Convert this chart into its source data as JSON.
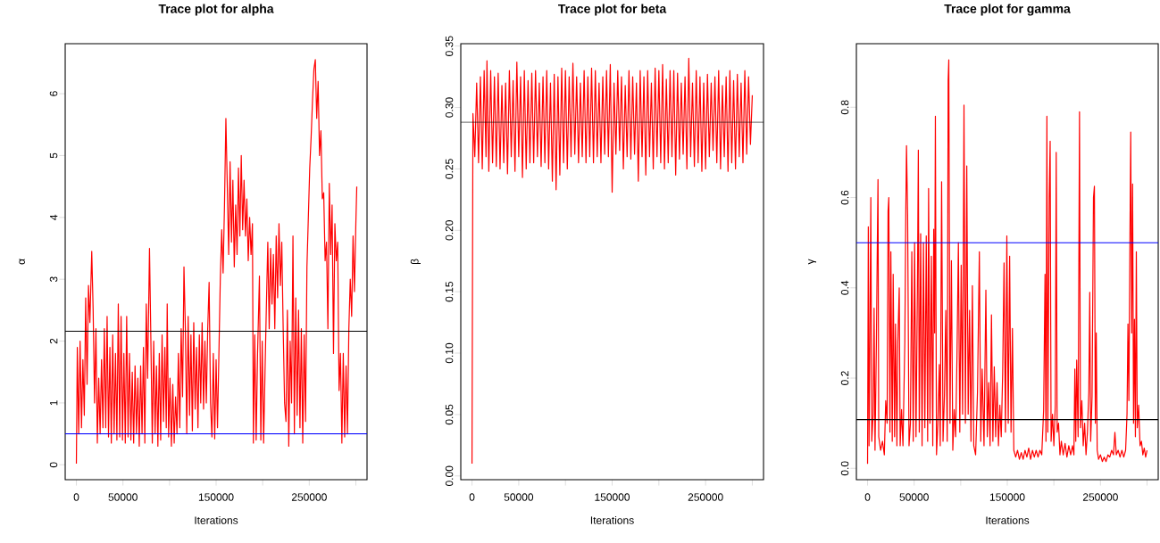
{
  "chart_data": [
    {
      "type": "line",
      "title": "Trace plot for alpha",
      "xlabel": "Iterations",
      "ylabel": "α",
      "xlim": [
        -12000,
        312000
      ],
      "ylim": [
        -0.24,
        6.81
      ],
      "xticks": [
        0,
        50000,
        {
          "value": 100000,
          "label": null
        },
        150000,
        {
          "value": 200000,
          "label": null
        },
        250000,
        {
          "value": 300000,
          "label": null
        }
      ],
      "yticks": [
        0,
        1,
        2,
        3,
        4,
        5,
        6
      ],
      "ref_lines": [
        {
          "axis": "y",
          "value": 2.16,
          "color": "#000000"
        },
        {
          "axis": "y",
          "value": 0.5,
          "color": "#0000ff"
        }
      ],
      "series": [
        {
          "color": "#ff0000",
          "x": [
            0,
            1000,
            2500,
            4000,
            5500,
            7000,
            8500,
            10000,
            11500,
            13000,
            14500,
            16500,
            18000,
            19500,
            21000,
            22500,
            24000,
            25500,
            27000,
            28500,
            30000,
            31500,
            33000,
            34500,
            36000,
            37500,
            39000,
            40500,
            42000,
            43500,
            45000,
            46500,
            48000,
            49500,
            51000,
            52500,
            54000,
            55500,
            57000,
            58500,
            60000,
            61500,
            63000,
            64500,
            66000,
            67500,
            69000,
            70500,
            72000,
            73500,
            75000,
            76500,
            78500,
            80000,
            81500,
            83000,
            84500,
            86000,
            87500,
            89000,
            90500,
            92000,
            93500,
            95000,
            96500,
            97500,
            99000,
            100500,
            102000,
            103500,
            105000,
            106500,
            108000,
            109500,
            111000,
            112500,
            114000,
            115500,
            117000,
            118500,
            120000,
            121500,
            123000,
            124500,
            126000,
            127500,
            129000,
            130500,
            132000,
            133500,
            135000,
            136500,
            138000,
            139500,
            141000,
            142500,
            144000,
            145500,
            147000,
            148500,
            150000,
            151500,
            153000,
            154500,
            156000,
            157500,
            159000,
            160500,
            162000,
            163500,
            165000,
            166500,
            168000,
            169500,
            171000,
            172500,
            174000,
            175500,
            177000,
            178500,
            180000,
            181500,
            183000,
            184500,
            186000,
            187500,
            189000,
            190000,
            191500,
            193000,
            194500,
            196500,
            198000,
            199500,
            201000,
            202500,
            204000,
            205500,
            207000,
            208500,
            210000,
            211500,
            213000,
            214500,
            216000,
            217500,
            219000,
            220500,
            222000,
            223500,
            225000,
            226500,
            228000,
            229500,
            231000,
            232500,
            234000,
            235500,
            237000,
            238500,
            240000,
            241500,
            243000,
            244500,
            246000,
            247500,
            249000,
            250500,
            252000,
            253500,
            255000,
            256500,
            258000,
            259500,
            261000,
            262500,
            264000,
            265500,
            267000,
            268500,
            270000,
            271500,
            273000,
            274500,
            276000,
            277500,
            279000,
            280500,
            282000,
            283500,
            285000,
            286500,
            288000,
            289500,
            291000,
            292500,
            294000,
            295500,
            297000,
            298500,
            300000,
            301000
          ],
          "values": [
            0.02,
            1.9,
            0.5,
            2.0,
            0.6,
            1.7,
            0.8,
            2.7,
            1.3,
            2.9,
            2.3,
            3.45,
            2.5,
            1.0,
            2.2,
            0.35,
            1.4,
            0.5,
            1.7,
            0.6,
            2.2,
            0.6,
            2.4,
            0.45,
            1.9,
            0.35,
            2.1,
            0.5,
            1.8,
            0.4,
            2.6,
            0.45,
            2.4,
            0.4,
            1.8,
            0.35,
            2.4,
            0.45,
            1.8,
            0.4,
            1.5,
            0.35,
            1.6,
            0.5,
            1.4,
            0.3,
            1.6,
            0.5,
            1.9,
            0.35,
            2.6,
            1.4,
            3.5,
            2.0,
            0.35,
            2.0,
            0.5,
            1.6,
            0.3,
            1.8,
            0.4,
            2.1,
            0.7,
            1.9,
            0.6,
            2.6,
            0.45,
            1.4,
            0.3,
            1.3,
            0.35,
            1.1,
            0.5,
            1.8,
            0.6,
            2.2,
            1.1,
            3.2,
            2.2,
            0.5,
            2.4,
            0.8,
            2.1,
            0.55,
            2.3,
            0.9,
            1.9,
            0.6,
            2.1,
            1.0,
            2.3,
            0.9,
            2.0,
            1.0,
            2.2,
            2.95,
            1.0,
            0.45,
            1.8,
            0.42,
            1.7,
            0.6,
            1.8,
            3.0,
            3.8,
            3.1,
            4.2,
            5.6,
            4.5,
            3.4,
            4.9,
            3.6,
            4.6,
            3.2,
            4.2,
            3.4,
            4.8,
            3.7,
            5.0,
            3.8,
            4.6,
            3.7,
            4.3,
            3.3,
            4.0,
            3.4,
            3.9,
            0.35,
            2.1,
            0.4,
            1.8,
            3.05,
            0.4,
            2.0,
            0.35,
            1.5,
            2.6,
            3.6,
            2.2,
            3.5,
            2.6,
            3.4,
            2.2,
            3.7,
            2.7,
            3.9,
            2.9,
            3.6,
            2.2,
            1.0,
            0.7,
            2.5,
            0.3,
            2.0,
            1.0,
            3.7,
            0.5,
            2.7,
            0.8,
            2.5,
            0.6,
            2.2,
            0.35,
            2.1,
            0.7,
            3.2,
            4.0,
            4.8,
            5.3,
            5.9,
            6.4,
            6.55,
            5.6,
            6.2,
            5.0,
            5.4,
            4.3,
            4.4,
            3.3,
            3.6,
            2.2,
            4.55,
            3.4,
            4.2,
            1.8,
            3.9,
            3.3,
            3.6,
            1.2,
            1.8,
            0.35,
            1.8,
            0.45,
            1.6,
            0.5,
            2.2,
            3.0,
            2.4,
            3.7,
            2.8,
            3.9,
            4.5
          ]
        }
      ]
    },
    {
      "type": "line",
      "title": "Trace plot for beta",
      "xlabel": "Iterations",
      "ylabel": "β",
      "xlim": [
        -12000,
        312000
      ],
      "ylim": [
        -0.003,
        0.352
      ],
      "xticks": [
        0,
        50000,
        {
          "value": 100000,
          "label": null
        },
        150000,
        {
          "value": 200000,
          "label": null
        },
        250000,
        {
          "value": 300000,
          "label": null
        }
      ],
      "yticks": [
        {
          "value": 0,
          "label": "0.00"
        },
        0.05,
        {
          "value": 0.1,
          "label": "0.10"
        },
        0.15,
        {
          "value": 0.2,
          "label": "0.20"
        },
        0.25,
        {
          "value": 0.3,
          "label": "0.30"
        },
        0.35
      ],
      "ref_lines": [
        {
          "axis": "y",
          "value": 0.288,
          "color": "#000000"
        }
      ],
      "series": [
        {
          "color": "#ff0000",
          "x": [
            0,
            1000,
            3000,
            5000,
            7000,
            9000,
            11000,
            13000,
            15000,
            16000,
            18000,
            20000,
            22000,
            24000,
            26000,
            28000,
            30000,
            32000,
            34000,
            36000,
            38000,
            40000,
            42000,
            44000,
            46000,
            48000,
            50000,
            52000,
            54000,
            56000,
            58000,
            60000,
            62000,
            64000,
            66000,
            68000,
            70000,
            72000,
            74000,
            76000,
            78000,
            80000,
            82000,
            84000,
            86000,
            88000,
            90000,
            92000,
            94000,
            96000,
            98000,
            100000,
            102000,
            104000,
            106000,
            108000,
            110000,
            112000,
            114000,
            116000,
            118000,
            120000,
            122000,
            124000,
            126000,
            128000,
            130000,
            132000,
            134000,
            136000,
            138000,
            140000,
            142000,
            144000,
            146000,
            148000,
            150000,
            152000,
            154000,
            156000,
            158000,
            160000,
            162000,
            164000,
            166000,
            168000,
            170000,
            172000,
            174000,
            176000,
            178000,
            180000,
            182000,
            184000,
            186000,
            188000,
            190000,
            192000,
            194000,
            196000,
            198000,
            200000,
            202000,
            204000,
            206000,
            208000,
            210000,
            212000,
            214000,
            216000,
            218000,
            220000,
            222000,
            224000,
            226000,
            228000,
            230000,
            232000,
            234000,
            236000,
            238000,
            240000,
            242000,
            244000,
            246000,
            248000,
            250000,
            252000,
            254000,
            256000,
            258000,
            260000,
            262000,
            264000,
            266000,
            268000,
            270000,
            272000,
            274000,
            276000,
            278000,
            280000,
            282000,
            284000,
            286000,
            288000,
            290000,
            292000,
            294000,
            296000,
            298000,
            300000
          ],
          "values": [
            0.01,
            0.295,
            0.26,
            0.32,
            0.255,
            0.325,
            0.25,
            0.33,
            0.26,
            0.338,
            0.248,
            0.33,
            0.255,
            0.325,
            0.252,
            0.328,
            0.25,
            0.318,
            0.255,
            0.32,
            0.246,
            0.33,
            0.26,
            0.322,
            0.248,
            0.337,
            0.26,
            0.325,
            0.243,
            0.33,
            0.25,
            0.322,
            0.255,
            0.328,
            0.255,
            0.33,
            0.26,
            0.32,
            0.252,
            0.325,
            0.255,
            0.33,
            0.25,
            0.32,
            0.24,
            0.327,
            0.233,
            0.325,
            0.245,
            0.332,
            0.255,
            0.33,
            0.25,
            0.325,
            0.26,
            0.336,
            0.262,
            0.325,
            0.255,
            0.32,
            0.26,
            0.33,
            0.255,
            0.325,
            0.26,
            0.332,
            0.255,
            0.33,
            0.26,
            0.32,
            0.255,
            0.325,
            0.262,
            0.33,
            0.26,
            0.335,
            0.231,
            0.32,
            0.262,
            0.33,
            0.265,
            0.325,
            0.25,
            0.318,
            0.26,
            0.33,
            0.258,
            0.325,
            0.262,
            0.32,
            0.24,
            0.33,
            0.26,
            0.325,
            0.245,
            0.33,
            0.26,
            0.32,
            0.25,
            0.332,
            0.26,
            0.33,
            0.255,
            0.335,
            0.25,
            0.323,
            0.255,
            0.33,
            0.26,
            0.33,
            0.245,
            0.328,
            0.258,
            0.32,
            0.262,
            0.325,
            0.25,
            0.34,
            0.26,
            0.32,
            0.252,
            0.33,
            0.255,
            0.325,
            0.248,
            0.32,
            0.25,
            0.327,
            0.26,
            0.32,
            0.265,
            0.325,
            0.255,
            0.33,
            0.25,
            0.318,
            0.26,
            0.325,
            0.248,
            0.33,
            0.255,
            0.322,
            0.25,
            0.327,
            0.26,
            0.32,
            0.255,
            0.33,
            0.262,
            0.325,
            0.27,
            0.31
          ]
        }
      ]
    },
    {
      "type": "line",
      "title": "Trace plot for gamma",
      "xlabel": "Iterations",
      "ylabel": "γ",
      "xlim": [
        -12000,
        312000
      ],
      "ylim": [
        -0.025,
        0.941
      ],
      "xticks": [
        0,
        50000,
        {
          "value": 100000,
          "label": null
        },
        150000,
        {
          "value": 200000,
          "label": null
        },
        250000,
        {
          "value": 300000,
          "label": null
        }
      ],
      "yticks": [
        {
          "value": 0,
          "label": "0.0"
        },
        0.2,
        0.4,
        0.6,
        0.8
      ],
      "ref_lines": [
        {
          "axis": "y",
          "value": 0.5,
          "color": "#0000ff"
        },
        {
          "axis": "y",
          "value": 0.108,
          "color": "#000000"
        }
      ],
      "series": [
        {
          "color": "#ff0000",
          "x": [
            0,
            800,
            1600,
            2500,
            3500,
            4500,
            6000,
            7000,
            8000,
            9500,
            10500,
            11200,
            12000,
            14000,
            16000,
            18000,
            19500,
            21000,
            22000,
            22800,
            24000,
            25000,
            26500,
            27500,
            29000,
            30000,
            31500,
            32500,
            34000,
            35000,
            36500,
            38000,
            40000,
            41000,
            41800,
            43000,
            44500,
            46000,
            47500,
            49000,
            50500,
            52000,
            53500,
            54500,
            55500,
            57000,
            58500,
            60000,
            61500,
            63000,
            64500,
            65500,
            67000,
            68500,
            70000,
            71000,
            72000,
            72800,
            74000,
            75500,
            77000,
            78000,
            79500,
            81000,
            82500,
            84000,
            85500,
            86500,
            87200,
            88500,
            90000,
            91500,
            93000,
            94500,
            96000,
            97500,
            99000,
            100500,
            102000,
            103500,
            105000,
            106500,
            108000,
            109500,
            111000,
            112500,
            114000,
            116000,
            118000,
            120000,
            121500,
            123000,
            125000,
            127000,
            128500,
            130000,
            131500,
            133000,
            134500,
            136000,
            137500,
            139000,
            140500,
            142000,
            143500,
            145000,
            146500,
            148000,
            149500,
            151000,
            152500,
            154000,
            155500,
            157000,
            159000,
            161000,
            163000,
            165000,
            167000,
            169000,
            171000,
            173000,
            175000,
            177000,
            179000,
            181000,
            183000,
            185000,
            187000,
            189000,
            190500,
            191500,
            192500,
            193500,
            195000,
            196000,
            197000,
            198500,
            200000,
            201500,
            202500,
            203500,
            205000,
            206500,
            208000,
            210000,
            212000,
            214000,
            216000,
            218000,
            220000,
            221500,
            222500,
            223500,
            224500,
            226000,
            227500,
            228500,
            230000,
            231500,
            233000,
            234500,
            236000,
            237500,
            238500,
            239500,
            241000,
            242500,
            243500,
            244500,
            245500,
            246500,
            248000,
            250000,
            252000,
            254000,
            256000,
            258000,
            260000,
            262000,
            264000,
            265500,
            267000,
            269000,
            271000,
            273000,
            275000,
            277000,
            278500,
            279500,
            280500,
            281500,
            282500,
            283500,
            284500,
            285500,
            286500,
            287500,
            288500,
            289500,
            291000,
            292500,
            294000,
            295500,
            297000,
            298500,
            300000
          ],
          "values": [
            0.01,
            0.535,
            0.05,
            0.29,
            0.6,
            0.06,
            0.12,
            0.355,
            0.04,
            0.28,
            0.5,
            0.64,
            0.07,
            0.04,
            0.06,
            0.03,
            0.15,
            0.1,
            0.57,
            0.6,
            0.08,
            0.48,
            0.06,
            0.43,
            0.07,
            0.32,
            0.05,
            0.28,
            0.4,
            0.05,
            0.13,
            0.05,
            0.28,
            0.56,
            0.715,
            0.56,
            0.05,
            0.1,
            0.48,
            0.06,
            0.5,
            0.07,
            0.39,
            0.705,
            0.08,
            0.52,
            0.05,
            0.5,
            0.09,
            0.515,
            0.06,
            0.62,
            0.1,
            0.47,
            0.05,
            0.53,
            0.3,
            0.78,
            0.03,
            0.1,
            0.23,
            0.05,
            0.635,
            0.06,
            0.16,
            0.35,
            0.06,
            0.86,
            0.905,
            0.1,
            0.46,
            0.04,
            0.13,
            0.07,
            0.25,
            0.5,
            0.08,
            0.45,
            0.12,
            0.805,
            0.1,
            0.67,
            0.12,
            0.35,
            0.06,
            0.405,
            0.05,
            0.03,
            0.17,
            0.48,
            0.06,
            0.22,
            0.05,
            0.395,
            0.07,
            0.19,
            0.05,
            0.34,
            0.06,
            0.225,
            0.07,
            0.19,
            0.05,
            0.14,
            0.07,
            0.21,
            0.455,
            0.08,
            0.515,
            0.1,
            0.47,
            0.08,
            0.31,
            0.04,
            0.025,
            0.04,
            0.02,
            0.035,
            0.02,
            0.04,
            0.025,
            0.045,
            0.02,
            0.04,
            0.025,
            0.04,
            0.025,
            0.04,
            0.03,
            0.13,
            0.43,
            0.06,
            0.78,
            0.08,
            0.6,
            0.725,
            0.06,
            0.12,
            0.05,
            0.14,
            0.7,
            0.08,
            0.1,
            0.03,
            0.06,
            0.03,
            0.055,
            0.025,
            0.05,
            0.03,
            0.05,
            0.03,
            0.22,
            0.06,
            0.24,
            0.07,
            0.79,
            0.09,
            0.15,
            0.05,
            0.1,
            0.03,
            0.08,
            0.17,
            0.39,
            0.06,
            0.16,
            0.6,
            0.625,
            0.1,
            0.3,
            0.04,
            0.02,
            0.03,
            0.015,
            0.025,
            0.015,
            0.03,
            0.025,
            0.04,
            0.03,
            0.08,
            0.03,
            0.04,
            0.025,
            0.04,
            0.025,
            0.04,
            0.12,
            0.32,
            0.15,
            0.47,
            0.745,
            0.3,
            0.63,
            0.1,
            0.33,
            0.07,
            0.48,
            0.09,
            0.14,
            0.05,
            0.06,
            0.03,
            0.045,
            0.025,
            0.04
          ]
        }
      ]
    }
  ]
}
